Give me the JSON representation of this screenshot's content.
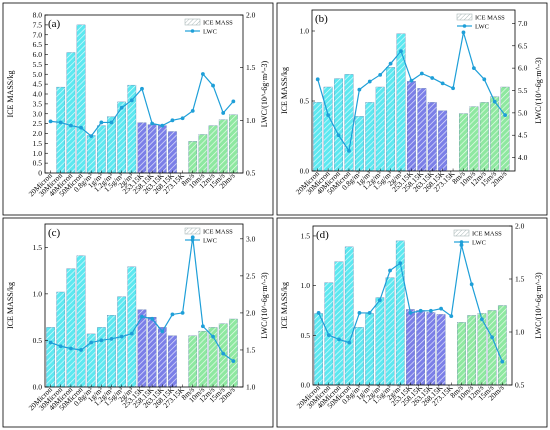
{
  "colors": {
    "cyan_bar": "#5ce8f0",
    "blue_bar": "#7b7fe8",
    "green_bar": "#8ee8a0",
    "lwc_line": "#1e9fd8",
    "hatch": "#ffffff"
  },
  "chart_data": [
    {
      "type": "bar",
      "panel_label": "(a)",
      "xlabel": "",
      "ylabel": "ICE MASS/kg",
      "y2label": "LWC/(10^-6g·m^-3)",
      "ylim": [
        0,
        8.0
      ],
      "yticks": [
        "0",
        "0.5",
        "1.0",
        "1.5",
        "2.0",
        "2.5",
        "3.0",
        "3.5",
        "4.0",
        "4.5",
        "5.0",
        "5.5",
        "6.0",
        "6.5",
        "7.0",
        "7.5",
        "8.0"
      ],
      "y2lim": [
        0.5,
        2.0
      ],
      "y2ticks": [
        "0.5",
        "1.0",
        "1.5",
        "2.0"
      ],
      "legend": {
        "placement": "top-right",
        "bar_label": "ICE MASS",
        "line_label": "LWC"
      },
      "categories": [
        "20Micron",
        "30Micron",
        "40Micron",
        "50Micron",
        "0.8g/m³",
        "1g/m³",
        "1.2g/m³",
        "1.5g/m³",
        "2g/m³",
        "253.15K",
        "258.15K",
        "263.15K",
        "268.15K",
        "273.15K",
        "8m/s",
        "10m/s",
        "12m/s",
        "15m/s",
        "20m/s"
      ],
      "ice_mass": [
        null,
        4.35,
        6.1,
        7.5,
        1.9,
        2.4,
        2.85,
        3.6,
        4.45,
        2.55,
        2.45,
        2.4,
        2.1,
        null,
        1.6,
        1.95,
        2.4,
        2.7,
        2.95
      ],
      "lwc": [
        null,
        0.98,
        0.95,
        0.93,
        0.85,
        0.98,
        0.98,
        1.12,
        1.19,
        1.3,
        0.97,
        0.95,
        1.0,
        1.02,
        1.09,
        1.44,
        1.33,
        1.07,
        1.18
      ],
      "lwc_first": 0.99,
      "bar_colors": [
        "cyan",
        "cyan",
        "cyan",
        "cyan",
        "cyan",
        "cyan",
        "cyan",
        "cyan",
        "cyan",
        "blue",
        "blue",
        "blue",
        "blue",
        "blue",
        "green",
        "green",
        "green",
        "green",
        "green"
      ]
    },
    {
      "type": "bar",
      "panel_label": "(b)",
      "xlabel": "",
      "ylabel": "ICE MASS/kg",
      "y2label": "LWC/(10^-6g·m^-3)",
      "ylim": [
        0,
        1.15
      ],
      "yticks": [
        "0.0",
        "0.5",
        "1.0"
      ],
      "y2lim": [
        3.7,
        7.3
      ],
      "y2ticks": [
        "4.0",
        "4.5",
        "5.0",
        "5.5",
        "6.0",
        "6.5",
        "7.0"
      ],
      "legend": {
        "placement": "top-right",
        "bar_label": "ICE MASS",
        "line_label": "LWC"
      },
      "categories": [
        "20Micron",
        "30Micron",
        "40Micron",
        "50Micron",
        "0.8g/m³",
        "1g/m³",
        "1.2g/m³",
        "1.5g/m³",
        "2g/m³",
        "253.15K",
        "258.15K",
        "263.15K",
        "268.15K",
        "273.15K",
        "8m/s",
        "10m/s",
        "12m/s",
        "15m/s",
        "20m/s"
      ],
      "ice_mass": [
        0.49,
        0.6,
        0.66,
        0.69,
        0.39,
        0.49,
        0.6,
        0.74,
        0.98,
        0.64,
        0.59,
        0.49,
        0.43,
        null,
        0.41,
        0.46,
        0.49,
        0.53,
        0.6
      ],
      "lwc": [
        5.75,
        4.95,
        4.5,
        4.15,
        5.52,
        5.7,
        5.85,
        6.1,
        6.38,
        5.72,
        5.88,
        5.78,
        5.66,
        5.55,
        6.8,
        6.0,
        5.75,
        5.25,
        4.95
      ]
    },
    {
      "type": "bar",
      "panel_label": "(c)",
      "xlabel": "",
      "ylabel": "ICE MASS/kg",
      "y2label": "LWC/(10^-6g·m^-3)",
      "ylim": [
        0,
        1.75
      ],
      "yticks": [
        "0.0",
        "0.5",
        "1.0",
        "1.5"
      ],
      "y2lim": [
        1.0,
        3.2
      ],
      "y2ticks": [
        "1.0",
        "1.5",
        "2.0",
        "2.5",
        "3.0"
      ],
      "legend": {
        "placement": "top-right",
        "bar_label": "ICE MASS",
        "line_label": "LWC"
      },
      "categories": [
        "20Micron",
        "30Micron",
        "40Micron",
        "50Micron",
        "0.8g/m³",
        "1g/m³",
        "1.2g/m³",
        "1.5g/m³",
        "2g/m³",
        "253.15K",
        "258.15K",
        "263.15K",
        "268.15K",
        "273.15K",
        "8m/s",
        "10m/s",
        "12m/s",
        "15m/s",
        "20m/s"
      ],
      "ice_mass": [
        0.64,
        1.02,
        1.27,
        1.41,
        0.57,
        0.64,
        0.77,
        0.97,
        1.29,
        0.83,
        0.75,
        0.64,
        0.55,
        null,
        0.55,
        0.6,
        0.64,
        0.68,
        0.73
      ],
      "lwc": [
        1.6,
        1.55,
        1.52,
        1.5,
        1.6,
        1.63,
        1.65,
        1.68,
        1.72,
        1.95,
        1.92,
        1.75,
        1.98,
        2.0,
        3.02,
        1.82,
        1.68,
        1.45,
        1.35
      ]
    },
    {
      "type": "bar",
      "panel_label": "(d)",
      "xlabel": "",
      "ylabel": "ICE MASS/kg",
      "y2label": "LWC/(10^-6g·m^-3)",
      "ylim": [
        0,
        1.6
      ],
      "yticks": [
        "0.0",
        "0.5",
        "1.0",
        "1.5"
      ],
      "y2lim": [
        0.5,
        2.0
      ],
      "y2ticks": [
        "0.5",
        "1.0",
        "1.5",
        "2.0"
      ],
      "legend": {
        "placement": "top-right",
        "bar_label": "ICE MASS",
        "line_label": "LWC"
      },
      "categories": [
        "20Micron",
        "30Micron",
        "40Micron",
        "50Micron",
        "0.8g/m³",
        "1g/m³",
        "1.2g/m³",
        "1.5g/m³",
        "2g/m³",
        "253.15K",
        "258.15K",
        "263.15K",
        "268.15K",
        "273.15K",
        "8m/s",
        "10m/s",
        "12m/s",
        "15m/s",
        "20m/s"
      ],
      "ice_mass": [
        0.72,
        1.03,
        1.24,
        1.39,
        0.58,
        0.72,
        0.88,
        1.08,
        1.45,
        0.76,
        0.75,
        0.73,
        0.71,
        null,
        0.63,
        0.7,
        0.72,
        0.75,
        0.8
      ],
      "lwc": [
        1.18,
        0.97,
        0.93,
        0.9,
        1.18,
        1.18,
        1.3,
        1.58,
        1.65,
        1.18,
        1.2,
        1.2,
        1.22,
        1.15,
        1.82,
        1.45,
        1.12,
        0.95,
        0.72
      ]
    }
  ]
}
